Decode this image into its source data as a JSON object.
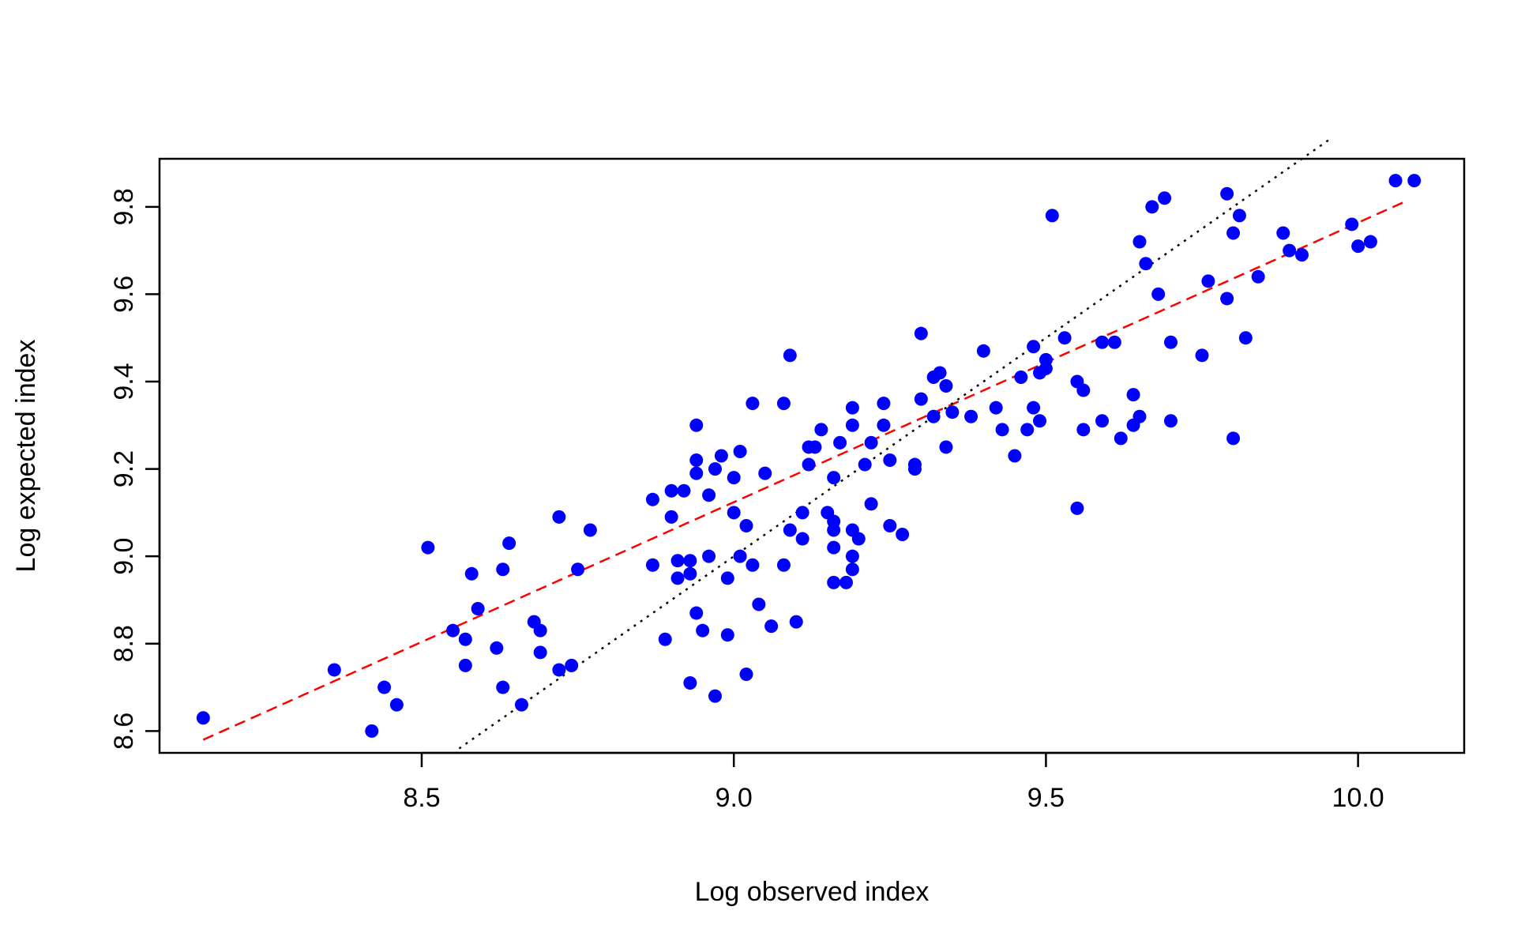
{
  "chart_data": {
    "type": "scatter",
    "title": "",
    "xlabel": "Log observed index",
    "ylabel": "Log expected index",
    "xlim": [
      8.08,
      10.17
    ],
    "ylim": [
      8.55,
      9.91
    ],
    "xticks": [
      8.5,
      9.0,
      9.5,
      10.0
    ],
    "xtick_labels": [
      "8.5",
      "9.0",
      "9.5",
      "10.0"
    ],
    "yticks": [
      8.6,
      8.8,
      9.0,
      9.2,
      9.4,
      9.6,
      9.8
    ],
    "ytick_labels": [
      "8.6",
      "8.8",
      "9.0",
      "9.2",
      "9.4",
      "9.6",
      "9.8"
    ],
    "grid": false,
    "legend": "none",
    "point_color": "#0000ff",
    "series": [
      {
        "points": [
          [
            8.15,
            8.63
          ],
          [
            8.36,
            8.74
          ],
          [
            8.42,
            8.6
          ],
          [
            8.44,
            8.7
          ],
          [
            8.46,
            8.66
          ],
          [
            8.51,
            9.02
          ],
          [
            8.55,
            8.83
          ],
          [
            8.57,
            8.81
          ],
          [
            8.57,
            8.75
          ],
          [
            8.58,
            8.96
          ],
          [
            8.59,
            8.88
          ],
          [
            8.62,
            8.79
          ],
          [
            8.63,
            8.97
          ],
          [
            8.64,
            9.03
          ],
          [
            8.63,
            8.7
          ],
          [
            8.66,
            8.66
          ],
          [
            8.68,
            8.85
          ],
          [
            8.69,
            8.83
          ],
          [
            8.69,
            8.78
          ],
          [
            8.72,
            9.09
          ],
          [
            8.72,
            8.74
          ],
          [
            8.74,
            8.75
          ],
          [
            8.75,
            8.97
          ],
          [
            8.77,
            9.06
          ],
          [
            8.87,
            9.13
          ],
          [
            8.87,
            8.98
          ],
          [
            8.89,
            8.81
          ],
          [
            8.9,
            9.09
          ],
          [
            8.9,
            9.15
          ],
          [
            8.92,
            9.15
          ],
          [
            8.91,
            8.99
          ],
          [
            8.91,
            8.95
          ],
          [
            8.93,
            8.96
          ],
          [
            8.93,
            8.99
          ],
          [
            8.93,
            8.71
          ],
          [
            8.94,
            9.22
          ],
          [
            8.94,
            9.3
          ],
          [
            8.94,
            9.19
          ],
          [
            8.94,
            8.87
          ],
          [
            8.95,
            8.83
          ],
          [
            8.96,
            9.14
          ],
          [
            8.96,
            9.0
          ],
          [
            8.97,
            9.2
          ],
          [
            8.98,
            9.23
          ],
          [
            8.97,
            8.68
          ],
          [
            8.99,
            8.95
          ],
          [
            8.99,
            8.82
          ],
          [
            9.0,
            9.18
          ],
          [
            9.0,
            9.1
          ],
          [
            9.01,
            9.24
          ],
          [
            9.01,
            9.0
          ],
          [
            9.02,
            9.07
          ],
          [
            9.02,
            8.73
          ],
          [
            9.03,
            8.98
          ],
          [
            9.03,
            9.35
          ],
          [
            9.04,
            8.89
          ],
          [
            9.05,
            9.19
          ],
          [
            9.06,
            8.84
          ],
          [
            9.08,
            9.35
          ],
          [
            9.08,
            8.98
          ],
          [
            9.09,
            9.06
          ],
          [
            9.09,
            9.46
          ],
          [
            9.1,
            8.85
          ],
          [
            9.11,
            9.1
          ],
          [
            9.11,
            9.04
          ],
          [
            9.12,
            9.21
          ],
          [
            9.13,
            9.25
          ],
          [
            9.12,
            9.25
          ],
          [
            9.14,
            9.29
          ],
          [
            9.15,
            9.1
          ],
          [
            9.16,
            9.08
          ],
          [
            9.16,
            9.06
          ],
          [
            9.16,
            9.18
          ],
          [
            9.16,
            9.02
          ],
          [
            9.16,
            8.94
          ],
          [
            9.17,
            9.26
          ],
          [
            9.18,
            8.94
          ],
          [
            9.19,
            9.34
          ],
          [
            9.19,
            9.3
          ],
          [
            9.19,
            9.06
          ],
          [
            9.19,
            9.0
          ],
          [
            9.19,
            8.97
          ],
          [
            9.2,
            9.04
          ],
          [
            9.21,
            9.21
          ],
          [
            9.22,
            9.26
          ],
          [
            9.22,
            9.12
          ],
          [
            9.24,
            9.3
          ],
          [
            9.24,
            9.35
          ],
          [
            9.25,
            9.22
          ],
          [
            9.25,
            9.07
          ],
          [
            9.27,
            9.05
          ],
          [
            9.29,
            9.2
          ],
          [
            9.29,
            9.21
          ],
          [
            9.3,
            9.51
          ],
          [
            9.3,
            9.36
          ],
          [
            9.32,
            9.32
          ],
          [
            9.32,
            9.41
          ],
          [
            9.33,
            9.42
          ],
          [
            9.34,
            9.39
          ],
          [
            9.34,
            9.25
          ],
          [
            9.35,
            9.33
          ],
          [
            9.38,
            9.32
          ],
          [
            9.4,
            9.47
          ],
          [
            9.42,
            9.34
          ],
          [
            9.43,
            9.29
          ],
          [
            9.45,
            9.23
          ],
          [
            9.46,
            9.41
          ],
          [
            9.47,
            9.29
          ],
          [
            9.48,
            9.48
          ],
          [
            9.48,
            9.34
          ],
          [
            9.49,
            9.31
          ],
          [
            9.49,
            9.42
          ],
          [
            9.5,
            9.45
          ],
          [
            9.5,
            9.43
          ],
          [
            9.51,
            9.78
          ],
          [
            9.53,
            9.5
          ],
          [
            9.55,
            9.4
          ],
          [
            9.55,
            9.11
          ],
          [
            9.56,
            9.38
          ],
          [
            9.56,
            9.29
          ],
          [
            9.59,
            9.49
          ],
          [
            9.59,
            9.31
          ],
          [
            9.61,
            9.49
          ],
          [
            9.62,
            9.27
          ],
          [
            9.64,
            9.37
          ],
          [
            9.64,
            9.3
          ],
          [
            9.65,
            9.32
          ],
          [
            9.65,
            9.72
          ],
          [
            9.66,
            9.67
          ],
          [
            9.67,
            9.8
          ],
          [
            9.68,
            9.6
          ],
          [
            9.69,
            9.82
          ],
          [
            9.7,
            9.49
          ],
          [
            9.7,
            9.31
          ],
          [
            9.75,
            9.46
          ],
          [
            9.76,
            9.63
          ],
          [
            9.79,
            9.83
          ],
          [
            9.79,
            9.59
          ],
          [
            9.8,
            9.74
          ],
          [
            9.8,
            9.27
          ],
          [
            9.81,
            9.78
          ],
          [
            9.82,
            9.5
          ],
          [
            9.84,
            9.64
          ],
          [
            9.88,
            9.74
          ],
          [
            9.89,
            9.7
          ],
          [
            9.91,
            9.69
          ],
          [
            9.99,
            9.76
          ],
          [
            10.0,
            9.71
          ],
          [
            10.02,
            9.72
          ],
          [
            10.06,
            9.86
          ],
          [
            10.09,
            9.86
          ]
        ]
      }
    ],
    "lines": [
      {
        "style": "dashed",
        "color": "#ff0000",
        "x": [
          8.15,
          10.08
        ],
        "y": [
          8.58,
          9.815
        ]
      },
      {
        "style": "dotted",
        "color": "#000000",
        "x": [
          8.56,
          9.955
        ],
        "y": [
          8.56,
          9.955
        ]
      }
    ]
  }
}
